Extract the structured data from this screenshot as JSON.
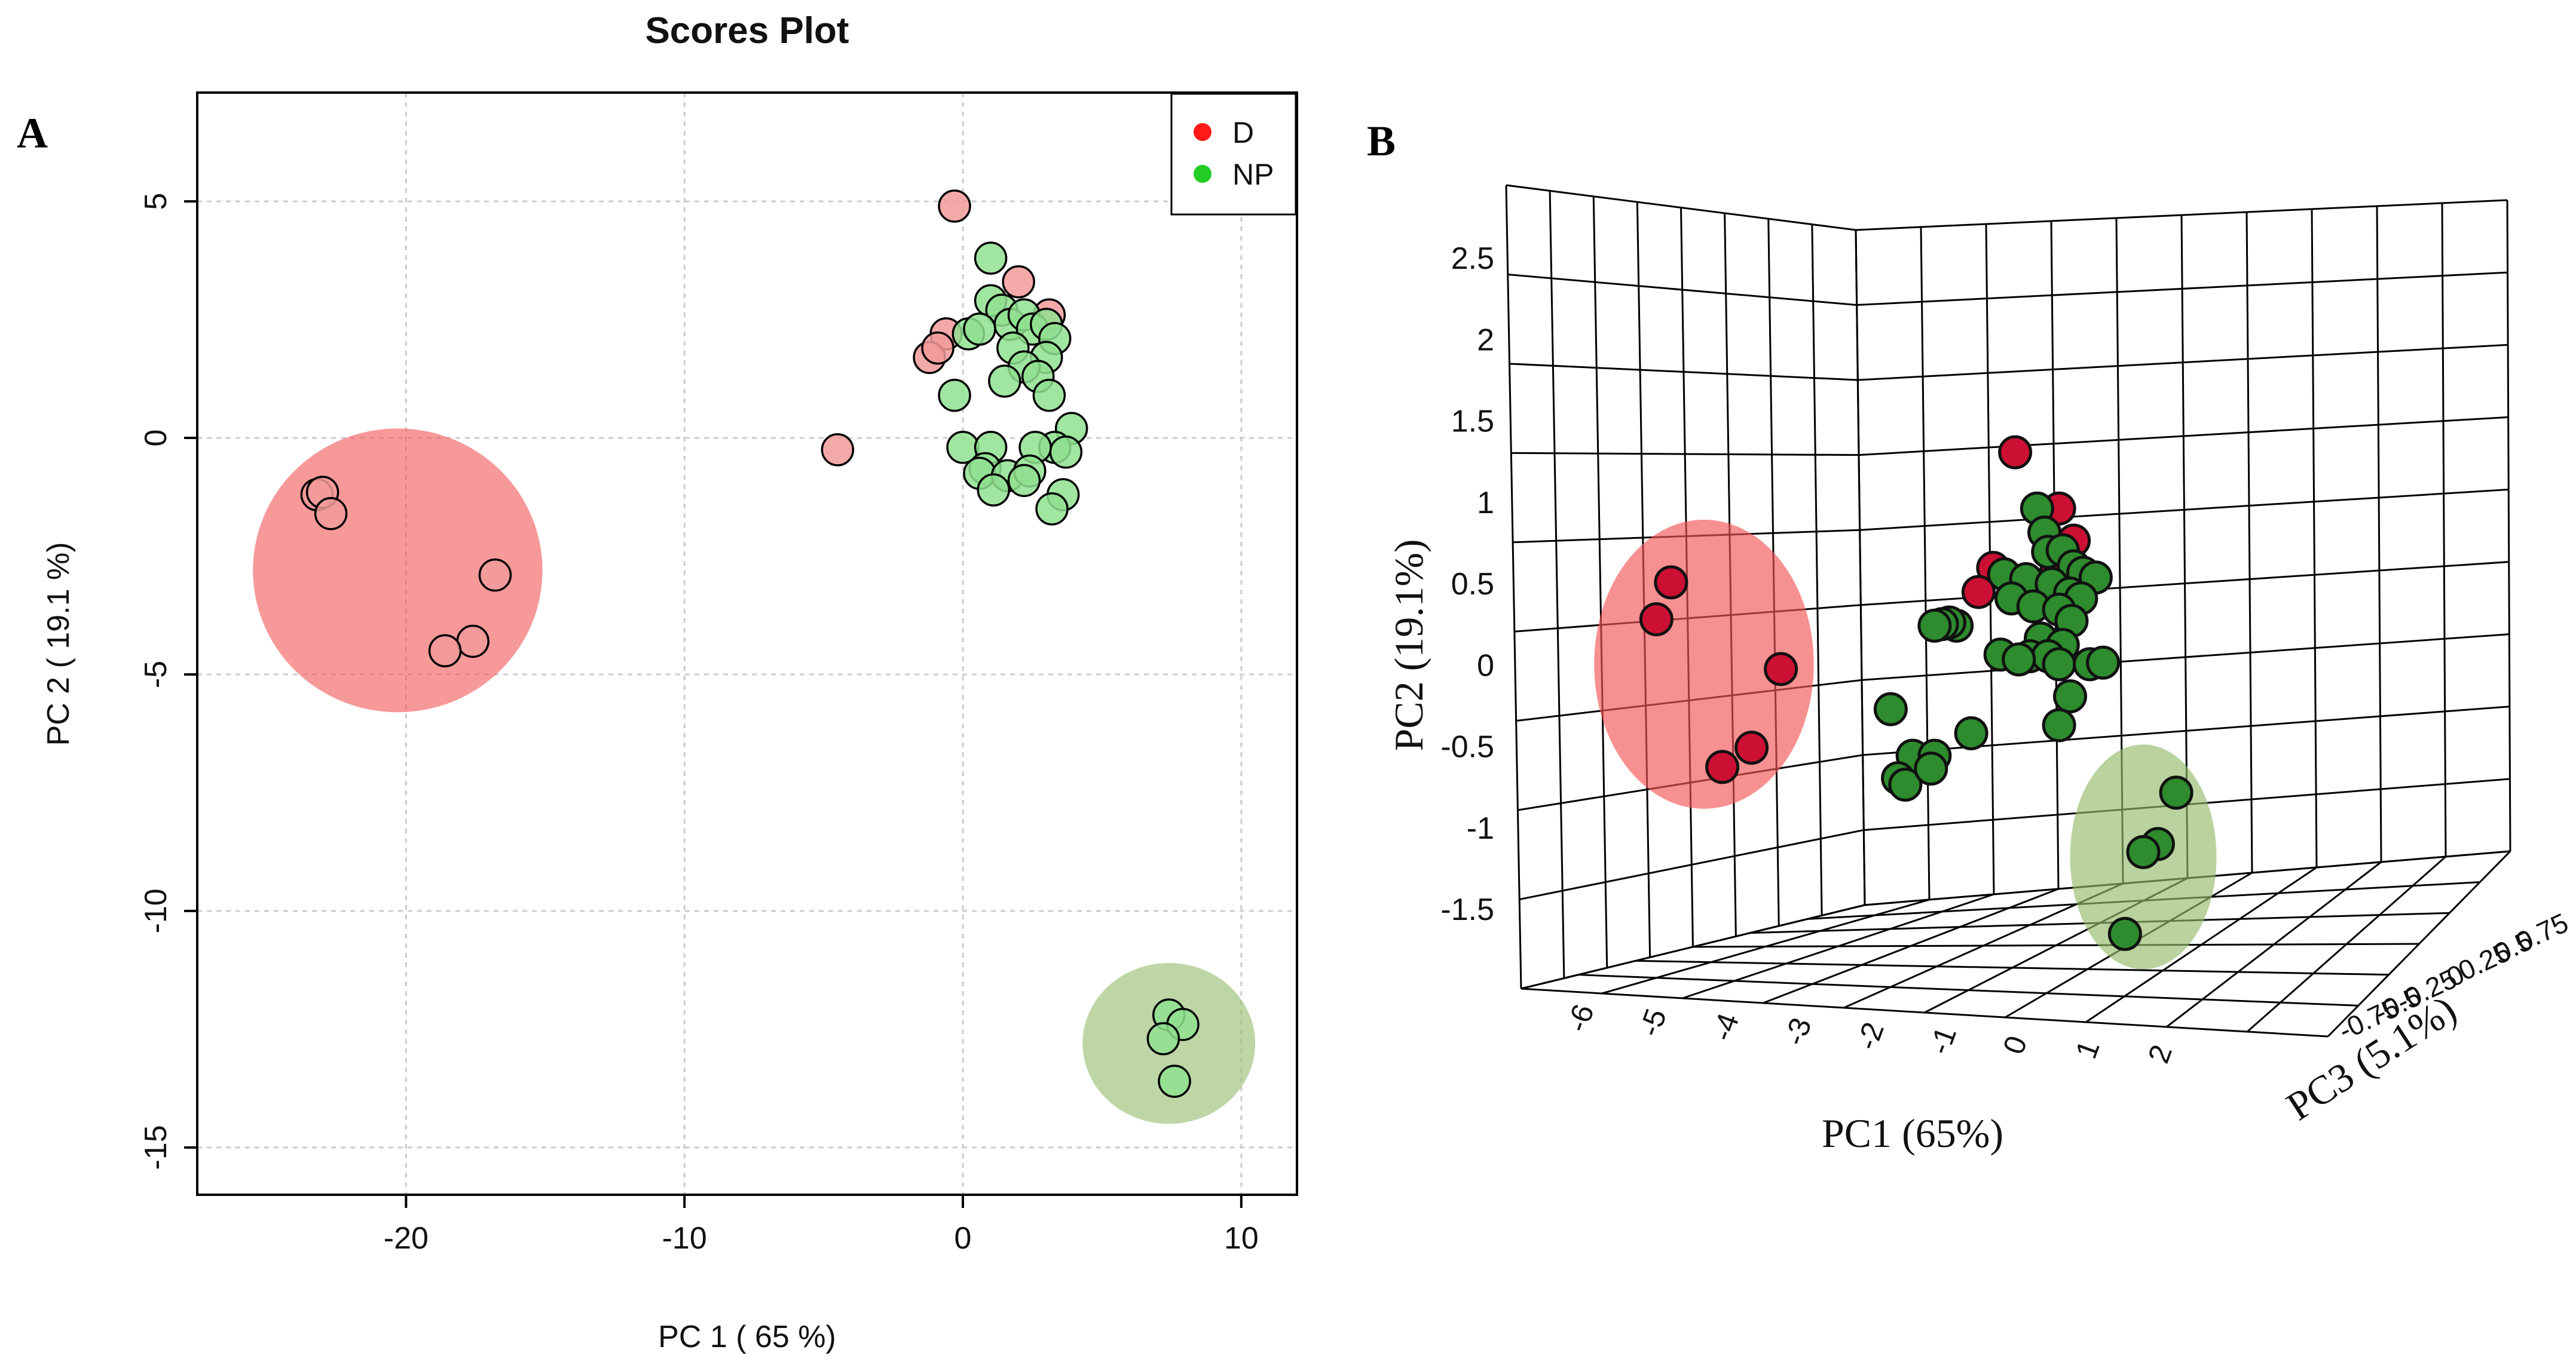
{
  "panel_labels": {
    "a": "A",
    "b": "B"
  },
  "colors": {
    "D": "#ff1a1a",
    "NP": "#22cc22",
    "D_2d_fill": "#f29a9a",
    "NP_2d_fill": "#8fe08f",
    "D_3d_fill": "#cc1034",
    "NP_3d_fill": "#2e8b2e",
    "D_ellipse": "#f25555",
    "NP_ellipse": "#93ba6a",
    "axis": "#000000",
    "grid": "#cccccc"
  },
  "chart_data": [
    {
      "id": "scores-2d",
      "type": "scatter",
      "title": "Scores Plot",
      "xlabel": "PC 1 ( 65 %)",
      "ylabel": "PC 2 ( 19.1 %)",
      "xlim": [
        -27.5,
        12
      ],
      "ylim": [
        -16.0,
        7.3
      ],
      "xticks": [
        -20,
        -10,
        0,
        10
      ],
      "yticks": [
        5,
        0,
        -5,
        -10,
        -15
      ],
      "xtick_labels": [
        "-20",
        "-10",
        "0",
        "10"
      ],
      "ytick_labels": [
        "5",
        "0",
        "-5",
        "-10",
        "-15"
      ],
      "grid": true,
      "legend": {
        "position": "top-right",
        "entries": [
          "D",
          "NP"
        ]
      },
      "ellipses": [
        {
          "group": "D",
          "center": [
            -20.3,
            -2.8
          ],
          "rx": 5.2,
          "ry": 3.0
        },
        {
          "group": "NP",
          "center": [
            7.4,
            -12.8
          ],
          "rx": 3.1,
          "ry": 1.7
        }
      ],
      "series": [
        {
          "name": "D",
          "points": [
            [
              -23.2,
              -1.2
            ],
            [
              -23.0,
              -1.15
            ],
            [
              -22.7,
              -1.6
            ],
            [
              -16.8,
              -2.9
            ],
            [
              -17.6,
              -4.3
            ],
            [
              -18.6,
              -4.5
            ],
            [
              -0.3,
              4.9
            ],
            [
              2.0,
              3.3
            ],
            [
              3.1,
              2.6
            ],
            [
              -0.6,
              2.2
            ],
            [
              -1.2,
              1.7
            ],
            [
              -0.9,
              1.9
            ],
            [
              -4.5,
              -0.25
            ]
          ]
        },
        {
          "name": "NP",
          "points": [
            [
              1.0,
              3.8
            ],
            [
              1.0,
              2.9
            ],
            [
              1.4,
              2.7
            ],
            [
              1.7,
              2.4
            ],
            [
              2.2,
              2.6
            ],
            [
              2.5,
              2.3
            ],
            [
              3.0,
              2.4
            ],
            [
              3.3,
              2.1
            ],
            [
              3.0,
              1.7
            ],
            [
              1.8,
              1.9
            ],
            [
              2.2,
              1.5
            ],
            [
              1.5,
              1.2
            ],
            [
              2.7,
              1.3
            ],
            [
              3.1,
              0.9
            ],
            [
              0.2,
              2.2
            ],
            [
              0.6,
              2.3
            ],
            [
              -0.3,
              0.9
            ],
            [
              3.9,
              0.2
            ],
            [
              3.3,
              -0.2
            ],
            [
              3.7,
              -0.3
            ],
            [
              2.6,
              -0.2
            ],
            [
              0.0,
              -0.2
            ],
            [
              1.0,
              -0.2
            ],
            [
              0.8,
              -0.65
            ],
            [
              0.6,
              -0.75
            ],
            [
              1.6,
              -0.8
            ],
            [
              2.4,
              -0.7
            ],
            [
              2.2,
              -0.9
            ],
            [
              1.1,
              -1.1
            ],
            [
              3.6,
              -1.2
            ],
            [
              3.2,
              -1.5
            ],
            [
              7.4,
              -12.2
            ],
            [
              7.9,
              -12.4
            ],
            [
              7.2,
              -12.7
            ],
            [
              7.6,
              -13.6
            ]
          ]
        }
      ]
    },
    {
      "id": "scores-3d",
      "type": "scatter",
      "xlabel": "PC1 (65%)",
      "ylabel": "PC2 (19.1%)",
      "zlabel": "PC3 (5.1%)",
      "xlim": [
        -6,
        2
      ],
      "ylim": [
        -1.5,
        2.5
      ],
      "zlim": [
        -0.75,
        0.75
      ],
      "xtick_labels": [
        "-6",
        "-5",
        "-4",
        "-3",
        "-2",
        "-1",
        "0",
        "1",
        "2"
      ],
      "ytick_labels": [
        "2.5",
        "2",
        "1.5",
        "1",
        "0.5",
        "0",
        "-0.5",
        "-1",
        "-1.5"
      ],
      "ztick_labels": [
        "-0.75",
        "-0.5",
        "-0.25",
        "0",
        "0.25",
        "0.5",
        "0.75"
      ],
      "grid": true,
      "ellipses": [
        {
          "group": "D",
          "center": [
            -4.4,
            0.0
          ],
          "rx": 1.5,
          "ry": 0.9
        },
        {
          "group": "NP",
          "center": [
            1.6,
            -1.2
          ],
          "rx": 1.0,
          "ry": 0.7
        }
      ],
      "series": [
        {
          "name": "D",
          "points": [
            [
              -4.85,
              0.51
            ],
            [
              -5.05,
              0.28
            ],
            [
              -3.35,
              -0.03
            ],
            [
              -3.75,
              -0.52
            ],
            [
              -4.15,
              -0.64
            ],
            [
              -0.15,
              1.32
            ],
            [
              0.45,
              0.97
            ],
            [
              0.65,
              0.77
            ],
            [
              -0.45,
              0.6
            ],
            [
              -0.65,
              0.45
            ],
            [
              0.4,
              0.56
            ]
          ]
        },
        {
          "name": "NP",
          "points": [
            [
              0.15,
              0.97
            ],
            [
              0.25,
              0.82
            ],
            [
              0.3,
              0.7
            ],
            [
              0.5,
              0.71
            ],
            [
              0.65,
              0.61
            ],
            [
              0.78,
              0.57
            ],
            [
              0.95,
              0.54
            ],
            [
              -0.3,
              0.56
            ],
            [
              0.0,
              0.53
            ],
            [
              0.35,
              0.5
            ],
            [
              0.6,
              0.44
            ],
            [
              0.75,
              0.41
            ],
            [
              -0.2,
              0.41
            ],
            [
              0.1,
              0.36
            ],
            [
              0.45,
              0.34
            ],
            [
              0.62,
              0.27
            ],
            [
              -0.95,
              0.24
            ],
            [
              -1.05,
              0.26
            ],
            [
              -1.15,
              0.25
            ],
            [
              -1.25,
              0.24
            ],
            [
              0.2,
              0.16
            ],
            [
              0.5,
              0.12
            ],
            [
              0.05,
              0.05
            ],
            [
              0.3,
              0.05
            ],
            [
              -0.35,
              0.06
            ],
            [
              -0.1,
              0.03
            ],
            [
              0.45,
              0.0
            ],
            [
              0.87,
              0.0
            ],
            [
              1.05,
              0.01
            ],
            [
              0.6,
              -0.2
            ],
            [
              0.45,
              -0.38
            ],
            [
              -0.75,
              -0.43
            ],
            [
              -1.85,
              -0.28
            ],
            [
              -1.55,
              -0.57
            ],
            [
              -1.25,
              -0.57
            ],
            [
              -1.75,
              -0.71
            ],
            [
              -1.65,
              -0.75
            ],
            [
              -1.3,
              -0.65
            ],
            [
              2.05,
              -0.8
            ],
            [
              1.8,
              -1.12
            ],
            [
              1.6,
              -1.17
            ],
            [
              1.35,
              -1.68
            ]
          ]
        }
      ]
    }
  ]
}
